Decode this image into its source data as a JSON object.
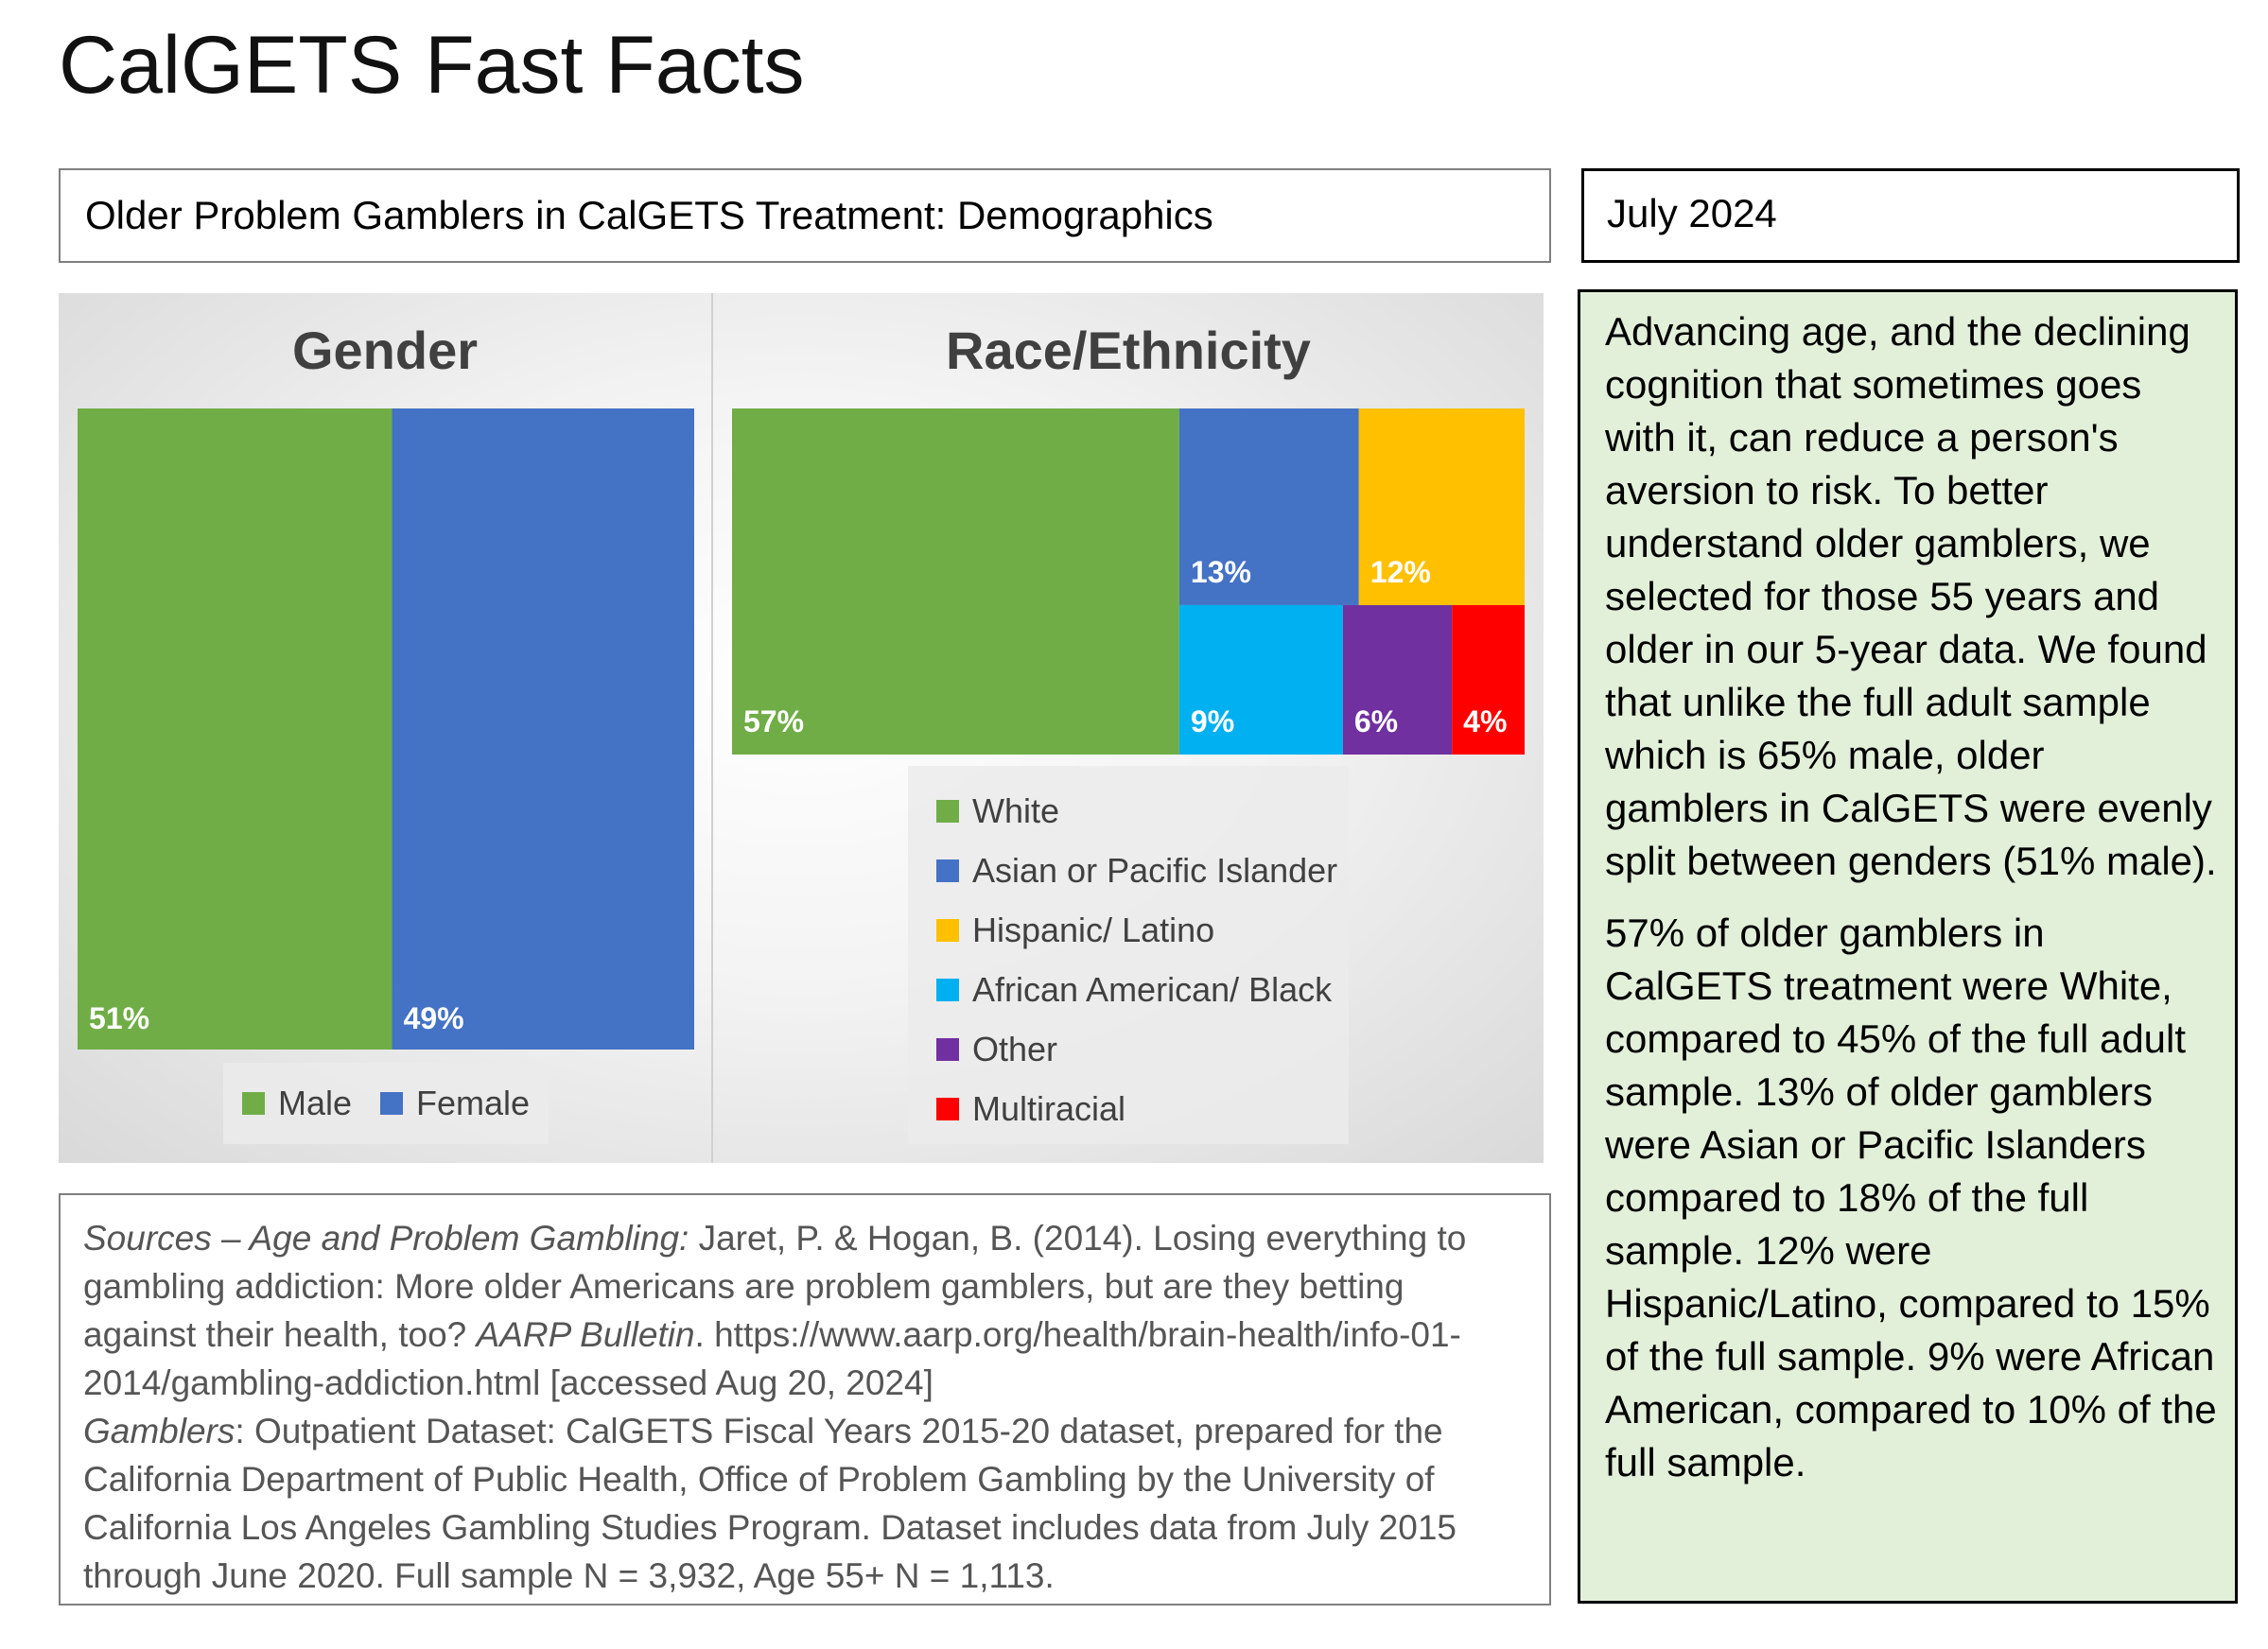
{
  "header": {
    "title": "CalGETS Fast Facts",
    "subtitle": "Older Problem Gamblers in CalGETS Treatment: Demographics",
    "date": "July 2024"
  },
  "chart_data": [
    {
      "type": "bar",
      "title": "Gender",
      "categories": [
        "Male",
        "Female"
      ],
      "values": [
        51,
        49
      ],
      "unit": "%",
      "data_labels": [
        "51%",
        "49%"
      ],
      "colors": [
        "#70ad47",
        "#4472c4"
      ],
      "legend": "bottom"
    },
    {
      "type": "treemap",
      "title": "Race/Ethnicity",
      "categories": [
        "White",
        "Asian or Pacific Islander",
        "Hispanic/ Latino",
        "African American/ Black",
        "Other",
        "Multiracial"
      ],
      "values": [
        57,
        13,
        12,
        9,
        6,
        4
      ],
      "unit": "%",
      "data_labels": [
        "57%",
        "13%",
        "12%",
        "9%",
        "6%",
        "4%"
      ],
      "colors": [
        "#70ad47",
        "#4472c4",
        "#ffc000",
        "#00b0f0",
        "#7030a0",
        "#ff0000"
      ],
      "legend": "bottom"
    }
  ],
  "sources": {
    "label1": "Sources – Age and Problem Gambling:",
    "text1": " Jaret, P. & Hogan, B. (2014). Losing everything to gambling addiction: More older Americans are problem gamblers, but are they betting against their health, too? ",
    "journal": "AARP Bulletin",
    "text1b": ". https://www.aarp.org/health/brain-health/info-01-2014/gambling-addiction.html [accessed Aug 20, 2024]",
    "label2": "Gamblers",
    "text2": ": Outpatient Dataset: CalGETS Fiscal Years 2015-20 dataset, prepared for the California Department of Public Health, Office of Problem Gambling by the University of California Los Angeles Gambling Studies Program. Dataset includes data from July 2015 through June 2020. Full sample N = 3,932, Age 55+ N = 1,113."
  },
  "info": {
    "paragraph1": "Advancing age, and the declining cognition that sometimes goes with it, can reduce a person's aversion to risk. To better understand older gamblers, we selected for those 55 years and older in our 5-year data. We found that unlike the full adult sample which is 65% male, older gamblers in CalGETS were evenly split between genders (51% male).",
    "paragraph2": "57% of older gamblers in CalGETS treatment were White, compared to 45% of the full adult sample. 13% of older gamblers were Asian or Pacific Islanders compared to 18% of the full sample. 12% were Hispanic/Latino, compared to 15% of the full sample. 9% were African American, compared to 10% of the full sample."
  }
}
